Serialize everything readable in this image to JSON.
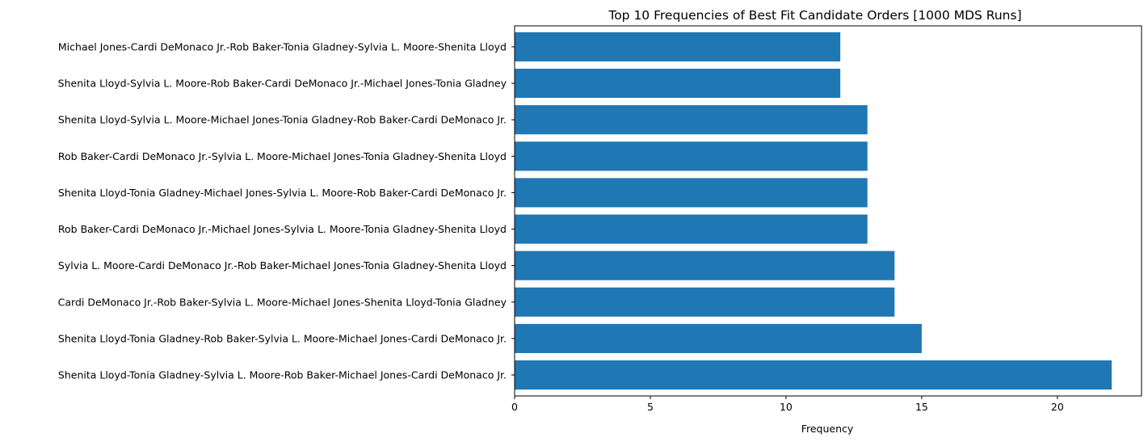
{
  "chart_data": {
    "type": "bar",
    "orientation": "horizontal",
    "title": "Top 10 Frequencies of Best Fit Candidate Orders [1000 MDS Runs]",
    "xlabel": "Frequency",
    "ylabel": "",
    "xlim": [
      0,
      23.1
    ],
    "xticks": [
      "0",
      "5",
      "10",
      "15",
      "20"
    ],
    "xtick_values": [
      0,
      5,
      10,
      15,
      20
    ],
    "grid": false,
    "bar_color": "#1f77b4",
    "categories": [
      "Shenita Lloyd-Tonia Gladney-Sylvia L. Moore-Rob Baker-Michael Jones-Cardi DeMonaco Jr.",
      "Shenita Lloyd-Tonia Gladney-Rob Baker-Sylvia L. Moore-Michael Jones-Cardi DeMonaco Jr.",
      "Cardi DeMonaco Jr.-Rob Baker-Sylvia L. Moore-Michael Jones-Shenita Lloyd-Tonia Gladney",
      "Sylvia L. Moore-Cardi DeMonaco Jr.-Rob Baker-Michael Jones-Tonia Gladney-Shenita Lloyd",
      "Rob Baker-Cardi DeMonaco Jr.-Michael Jones-Sylvia L. Moore-Tonia Gladney-Shenita Lloyd",
      "Shenita Lloyd-Tonia Gladney-Michael Jones-Sylvia L. Moore-Rob Baker-Cardi DeMonaco Jr.",
      "Rob Baker-Cardi DeMonaco Jr.-Sylvia L. Moore-Michael Jones-Tonia Gladney-Shenita Lloyd",
      "Shenita Lloyd-Sylvia L. Moore-Michael Jones-Tonia Gladney-Rob Baker-Cardi DeMonaco Jr.",
      "Shenita Lloyd-Sylvia L. Moore-Rob Baker-Cardi DeMonaco Jr.-Michael Jones-Tonia Gladney",
      "Michael Jones-Cardi DeMonaco Jr.-Rob Baker-Tonia Gladney-Sylvia L. Moore-Shenita Lloyd"
    ],
    "values": [
      22,
      15,
      14,
      14,
      13,
      13,
      13,
      13,
      12,
      12
    ]
  }
}
